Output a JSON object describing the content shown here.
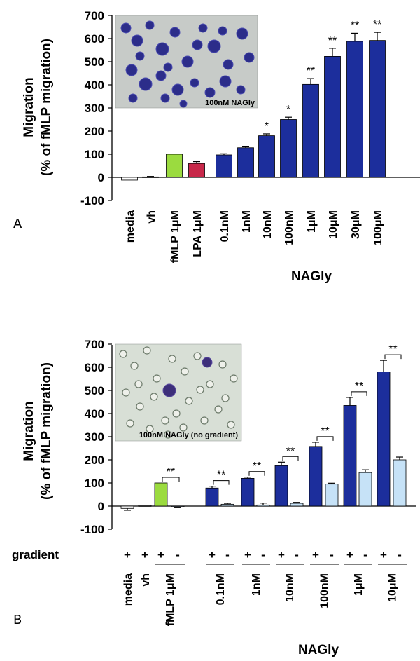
{
  "colors": {
    "navy": "#1c2e9c",
    "light_blue": "#c6e2f7",
    "green": "#9bdb3f",
    "red": "#c8284a",
    "white": "#ffffff"
  },
  "chart_data": [
    {
      "panel_label": "A",
      "type": "bar",
      "ylabel_line1": "Migration",
      "ylabel_line2": "(% of fMLP migration)",
      "ylim": [
        -100,
        700
      ],
      "yticks": [
        "700",
        "600",
        "500",
        "400",
        "300",
        "200",
        "100",
        "0",
        "-100"
      ],
      "inset_caption": "100nM NAGly",
      "group_label": "NAGly",
      "categories": [
        "media",
        "vh",
        "fMLP 1μM",
        "LPA 1μM",
        "0.1nM",
        "1nM",
        "10nM",
        "100nM",
        "1μM",
        "10μM",
        "30μM",
        "100μM"
      ],
      "values": [
        -12,
        2,
        100,
        60,
        97,
        128,
        180,
        250,
        402,
        523,
        588,
        592
      ],
      "errors": [
        0,
        2,
        0,
        8,
        5,
        4,
        8,
        10,
        25,
        35,
        35,
        35
      ],
      "bar_colors": [
        "white",
        "white",
        "green",
        "red",
        "navy",
        "navy",
        "navy",
        "navy",
        "navy",
        "navy",
        "navy",
        "navy"
      ],
      "significance": [
        "",
        "",
        "",
        "",
        "",
        "",
        "*",
        "*",
        "**",
        "**",
        "**",
        "**"
      ]
    },
    {
      "panel_label": "B",
      "type": "bar",
      "ylabel_line1": "Migration",
      "ylabel_line2": "(% of fMLP migration)",
      "ylim": [
        -100,
        700
      ],
      "yticks": [
        "700",
        "600",
        "500",
        "400",
        "300",
        "200",
        "100",
        "0",
        "-100"
      ],
      "inset_caption": "100nM NAGly (no gradient)",
      "group_label": "NAGly",
      "gradient_label": "gradient",
      "plus": "+",
      "minus": "-",
      "categories": [
        "media",
        "vh",
        "fMLP 1μM",
        "0.1nM",
        "1nM",
        "10nM",
        "100nM",
        "1μM",
        "10μM"
      ],
      "series": [
        {
          "gradient": "+",
          "values": [
            -10,
            2,
            100,
            78,
            120,
            175,
            258,
            435,
            580
          ],
          "errors": [
            8,
            2,
            0,
            8,
            5,
            15,
            18,
            35,
            50
          ]
        },
        {
          "gradient": "-",
          "values": [
            null,
            null,
            -3,
            8,
            5,
            12,
            95,
            145,
            200
          ],
          "errors": [
            null,
            null,
            4,
            4,
            8,
            4,
            4,
            12,
            12
          ]
        }
      ],
      "significance": [
        "",
        "",
        "**",
        "**",
        "**",
        "**",
        "**",
        "**",
        "**"
      ]
    }
  ]
}
